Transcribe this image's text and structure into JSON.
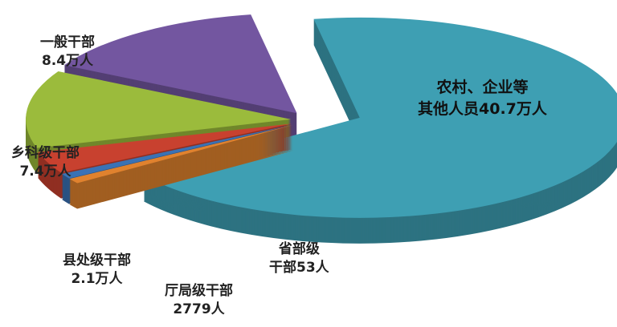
{
  "chart_data": {
    "type": "pie",
    "style": "3d-exploded",
    "unit_note": "values in 万人 (10,000 persons)",
    "slices": [
      {
        "name": "农村、企业等其他人员",
        "label": "农村、企业等\n其他人员40.7万人",
        "value": 40.7,
        "color": "#3e9fb3"
      },
      {
        "name": "省部级干部",
        "label": "省部级\n干部53人",
        "value": 0.0053,
        "color": "#e0822e"
      },
      {
        "name": "厅局级干部",
        "label": "厅局级干部\n2779人",
        "value": 0.2779,
        "color": "#3a72b5"
      },
      {
        "name": "县处级干部",
        "label": "县处级干部\n2.1万人",
        "value": 2.1,
        "color": "#c8412f"
      },
      {
        "name": "乡科级干部",
        "label": "乡科级干部\n7.4万人",
        "value": 7.4,
        "color": "#9bbb3c"
      },
      {
        "name": "一般干部",
        "label": "一般干部\n8.4万人",
        "value": 8.4,
        "color": "#7356a0"
      }
    ],
    "legend": "none"
  }
}
